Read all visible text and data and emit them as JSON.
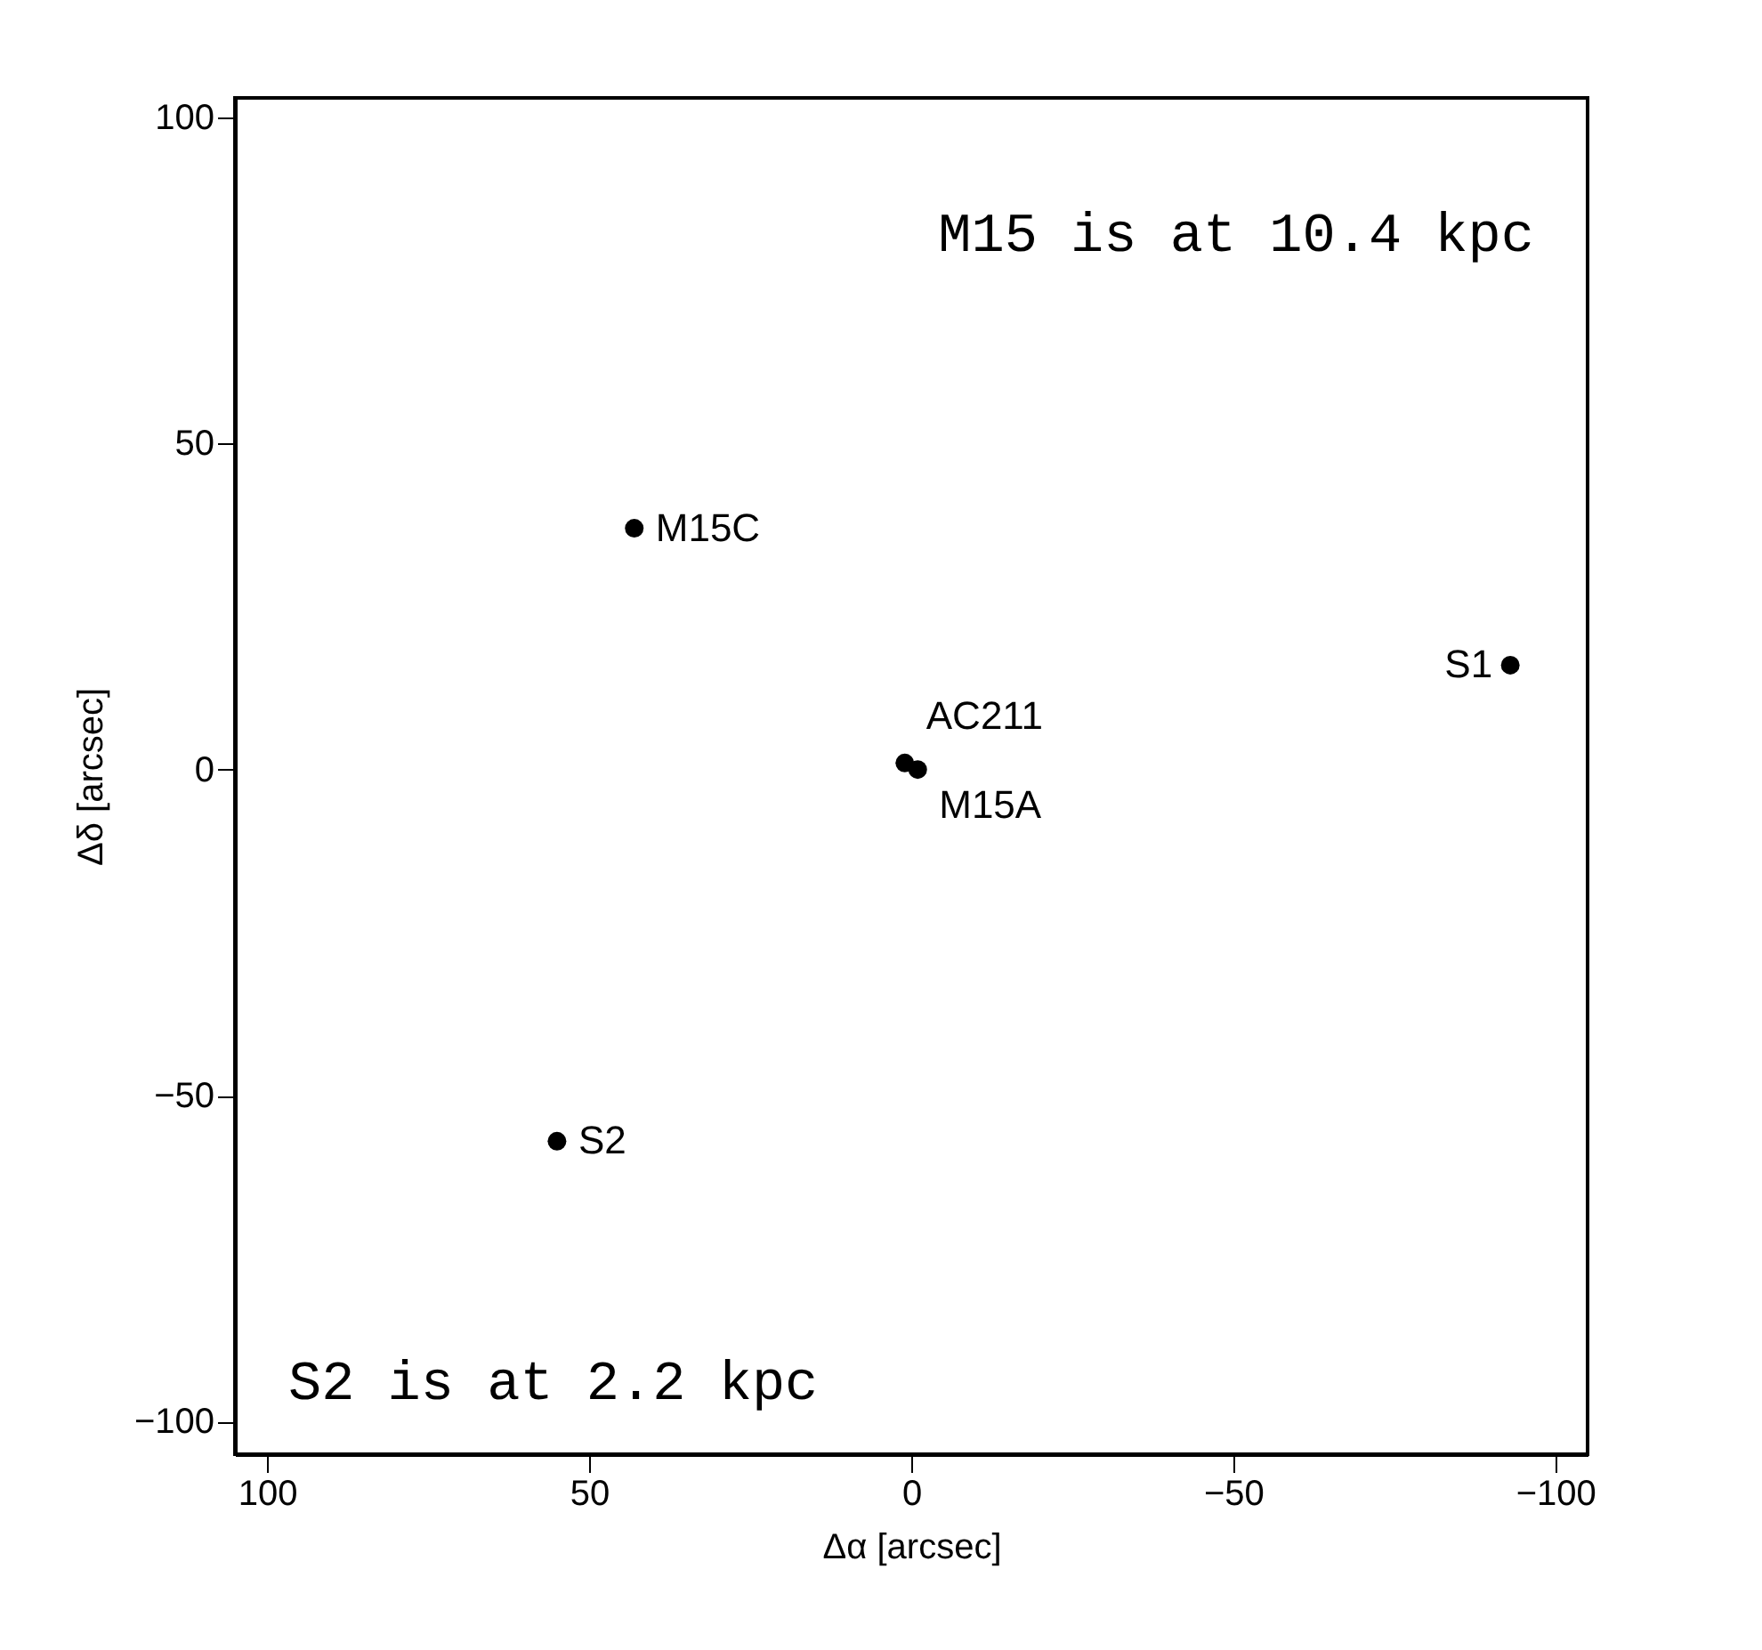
{
  "chart_data": {
    "type": "scatter",
    "xlabel": "Δα [arcsec]",
    "ylabel": "Δδ [arcsec]",
    "x": [
      43,
      1,
      -1,
      -93,
      55
    ],
    "series": [
      {
        "color": "#000000",
        "values": [
          37,
          1,
          0,
          16,
          -57
        ]
      }
    ],
    "xlim": [
      105,
      -105
    ],
    "xticks": [
      100,
      50,
      0,
      -50,
      -100
    ],
    "ylim": [
      -105,
      103
    ],
    "yticks": [
      -100,
      -50,
      0,
      50,
      100
    ],
    "marker": "circle",
    "grid": false,
    "annotations": [
      "M15 is at 10.4 kpc",
      "S2 is at 2.2 kpc",
      {
        "text": "M15C",
        "x": 43,
        "y": 37
      },
      {
        "text": "AC211",
        "x": 1,
        "y": 1
      },
      {
        "text": "M15A",
        "x": -1,
        "y": 0
      },
      {
        "text": "S1",
        "x": -93,
        "y": 16
      },
      {
        "text": "S2",
        "x": 55,
        "y": -57
      }
    ]
  }
}
